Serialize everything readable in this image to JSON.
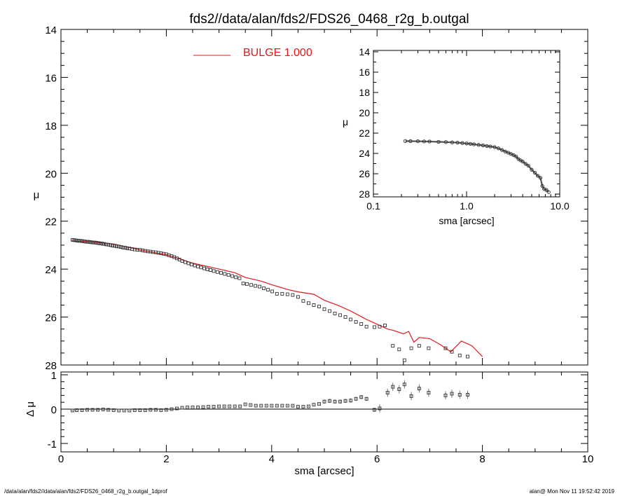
{
  "title": "fds2//data/alan/fds2/FDS26_0468_r2g_b.outgal",
  "footer": {
    "left": "/data/alan/fds2//data/alan/fds2/FDS26_0468_r2g_b.outgal_1dprof",
    "right": "alan@  Mon Nov 11 19:52:42 2019"
  },
  "chart_data": [
    {
      "panel": "main",
      "type": "scatter",
      "ylabel": "μ",
      "xlim": [
        0,
        10
      ],
      "ylim": [
        28,
        14
      ],
      "y_inverted": true,
      "yticks": [
        "14",
        "16",
        "18",
        "20",
        "22",
        "24",
        "26",
        "28"
      ],
      "legend": {
        "label": "BULGE  1.000",
        "color": "#e8141b",
        "placement": "top-left"
      },
      "series": [
        {
          "name": "data",
          "marker": "square",
          "color": "#333333",
          "x": [
            0.22,
            0.25,
            0.28,
            0.31,
            0.34,
            0.37,
            0.4,
            0.43,
            0.46,
            0.49,
            0.52,
            0.55,
            0.58,
            0.61,
            0.64,
            0.67,
            0.7,
            0.73,
            0.76,
            0.79,
            0.82,
            0.86,
            0.9,
            0.94,
            0.98,
            1.02,
            1.06,
            1.1,
            1.14,
            1.18,
            1.22,
            1.26,
            1.3,
            1.35,
            1.4,
            1.45,
            1.5,
            1.55,
            1.6,
            1.65,
            1.7,
            1.75,
            1.8,
            1.85,
            1.9,
            1.95,
            2.0,
            2.05,
            2.1,
            2.15,
            2.2,
            2.25,
            2.3,
            2.36,
            2.42,
            2.48,
            2.54,
            2.6,
            2.66,
            2.72,
            2.78,
            2.84,
            2.9,
            2.97,
            3.04,
            3.11,
            3.18,
            3.25,
            3.32,
            3.39,
            3.46,
            3.53,
            3.61,
            3.69,
            3.77,
            3.85,
            3.93,
            4.01,
            4.1,
            4.2,
            4.3,
            4.4,
            4.5,
            4.6,
            4.7,
            4.8,
            4.9,
            5.0,
            5.1,
            5.2,
            5.3,
            5.4,
            5.5,
            5.6,
            5.7,
            5.8,
            5.95,
            6.05,
            6.15,
            6.3,
            6.42,
            6.52,
            6.65,
            6.8,
            6.98,
            7.3,
            7.42,
            7.57,
            7.72
          ],
          "y": [
            22.78,
            22.79,
            22.8,
            22.81,
            22.82,
            22.82,
            22.83,
            22.84,
            22.85,
            22.86,
            22.86,
            22.87,
            22.88,
            22.89,
            22.89,
            22.9,
            22.91,
            22.92,
            22.93,
            22.94,
            22.95,
            22.97,
            22.98,
            23.0,
            23.02,
            23.03,
            23.05,
            23.06,
            23.08,
            23.1,
            23.11,
            23.13,
            23.14,
            23.16,
            23.18,
            23.19,
            23.2,
            23.22,
            23.24,
            23.26,
            23.27,
            23.29,
            23.3,
            23.32,
            23.34,
            23.36,
            23.38,
            23.42,
            23.46,
            23.5,
            23.55,
            23.6,
            23.66,
            23.71,
            23.76,
            23.81,
            23.85,
            23.89,
            23.93,
            23.97,
            24.01,
            24.04,
            24.08,
            24.12,
            24.16,
            24.2,
            24.24,
            24.29,
            24.34,
            24.38,
            24.6,
            24.62,
            24.66,
            24.7,
            24.73,
            24.8,
            24.86,
            24.93,
            25.03,
            25.03,
            25.05,
            25.08,
            25.16,
            25.33,
            25.42,
            25.5,
            25.56,
            25.67,
            25.75,
            25.85,
            25.92,
            26.0,
            26.1,
            26.2,
            26.29,
            26.4,
            26.42,
            26.4,
            26.35,
            27.2,
            27.35,
            27.8,
            27.3,
            27.2,
            27.3,
            27.3,
            27.45,
            27.6,
            27.65
          ]
        },
        {
          "name": "BULGE",
          "mark": "line",
          "color": "#e8141b",
          "x": [
            0.2,
            0.5,
            1.0,
            1.5,
            2.0,
            2.5,
            3.0,
            3.3,
            3.5,
            3.8,
            4.0,
            4.3,
            4.5,
            4.8,
            5.0,
            5.3,
            5.5,
            5.8,
            6.0,
            6.2,
            6.3,
            6.5,
            6.6,
            6.7,
            6.8,
            7.0,
            7.2,
            7.4,
            7.6,
            7.8,
            8.0
          ],
          "y": [
            22.82,
            22.85,
            22.95,
            23.2,
            23.4,
            23.75,
            24.0,
            24.15,
            24.35,
            24.5,
            24.65,
            24.85,
            24.95,
            25.05,
            25.3,
            25.55,
            25.75,
            26.1,
            26.3,
            26.5,
            26.55,
            26.7,
            26.6,
            27.05,
            26.85,
            26.9,
            27.15,
            27.45,
            27.0,
            27.2,
            27.65
          ]
        }
      ]
    },
    {
      "panel": "residual",
      "type": "scatter",
      "xlabel": "sma [arcsec]",
      "ylabel": "Δ μ",
      "xlim": [
        0,
        10
      ],
      "ylim": [
        -1,
        1
      ],
      "xticks": [
        "0",
        "2",
        "4",
        "6",
        "8",
        "10"
      ],
      "yticks": [
        "-1",
        "0",
        "1"
      ],
      "reference_line": 0,
      "series": [
        {
          "name": "residual",
          "marker": "square",
          "errorbars": true,
          "color": "#333333",
          "x": [
            0.22,
            0.3,
            0.4,
            0.5,
            0.6,
            0.7,
            0.8,
            0.9,
            1.0,
            1.1,
            1.2,
            1.3,
            1.4,
            1.5,
            1.6,
            1.7,
            1.8,
            1.9,
            2.0,
            2.1,
            2.2,
            2.3,
            2.4,
            2.5,
            2.6,
            2.7,
            2.8,
            2.9,
            3.0,
            3.1,
            3.2,
            3.3,
            3.4,
            3.5,
            3.6,
            3.7,
            3.8,
            3.9,
            4.0,
            4.1,
            4.2,
            4.3,
            4.4,
            4.5,
            4.6,
            4.7,
            4.8,
            4.9,
            5.0,
            5.1,
            5.2,
            5.3,
            5.4,
            5.5,
            5.6,
            5.7,
            5.8,
            5.95,
            6.05,
            6.2,
            6.3,
            6.42,
            6.52,
            6.65,
            6.8,
            6.98,
            7.3,
            7.42,
            7.57,
            7.72
          ],
          "y": [
            -0.04,
            -0.03,
            -0.03,
            -0.02,
            -0.02,
            -0.02,
            -0.01,
            -0.02,
            -0.03,
            -0.04,
            -0.04,
            -0.04,
            -0.03,
            -0.03,
            -0.03,
            -0.02,
            -0.02,
            -0.03,
            -0.02,
            0.0,
            0.02,
            0.04,
            0.05,
            0.05,
            0.05,
            0.06,
            0.07,
            0.07,
            0.08,
            0.08,
            0.08,
            0.08,
            0.08,
            0.14,
            0.12,
            0.1,
            0.1,
            0.1,
            0.1,
            0.1,
            0.1,
            0.1,
            0.1,
            0.07,
            0.07,
            0.08,
            0.13,
            0.15,
            0.22,
            0.24,
            0.22,
            0.22,
            0.24,
            0.25,
            0.3,
            0.35,
            0.3,
            -0.02,
            0.02,
            0.48,
            0.65,
            0.58,
            0.72,
            0.38,
            0.6,
            0.48,
            0.4,
            0.45,
            0.42,
            0.42
          ]
        }
      ]
    },
    {
      "panel": "inset",
      "type": "scatter",
      "xlabel": "sma [arcsec]",
      "ylabel": "μ",
      "x_scale": "log",
      "xlim": [
        0.1,
        10
      ],
      "ylim": [
        28,
        14
      ],
      "y_inverted": true,
      "xticks": [
        "0.1",
        "1.0",
        "10.0"
      ],
      "yticks": [
        "14",
        "16",
        "18",
        "20",
        "22",
        "24",
        "26",
        "28"
      ],
      "series": [
        {
          "name": "data",
          "marker": "circle",
          "color": "#333333",
          "x": [
            0.22,
            0.25,
            0.3,
            0.35,
            0.4,
            0.5,
            0.6,
            0.7,
            0.8,
            0.9,
            1.0,
            1.1,
            1.2,
            1.35,
            1.5,
            1.65,
            1.8,
            2.0,
            2.2,
            2.4,
            2.6,
            2.8,
            3.0,
            3.2,
            3.4,
            3.6,
            3.8,
            4.0,
            4.3,
            4.6,
            5.0,
            5.4,
            5.8,
            6.2,
            6.5,
            6.8,
            7.2,
            7.6
          ],
          "y": [
            22.78,
            22.79,
            22.8,
            22.82,
            22.83,
            22.86,
            22.88,
            22.91,
            22.94,
            22.98,
            23.02,
            23.06,
            23.1,
            23.16,
            23.21,
            23.27,
            23.32,
            23.38,
            23.5,
            23.66,
            23.81,
            23.93,
            24.05,
            24.17,
            24.3,
            24.55,
            24.68,
            24.8,
            25.03,
            25.2,
            25.6,
            25.9,
            26.2,
            26.4,
            27.2,
            27.5,
            27.6,
            27.8
          ]
        }
      ]
    }
  ]
}
